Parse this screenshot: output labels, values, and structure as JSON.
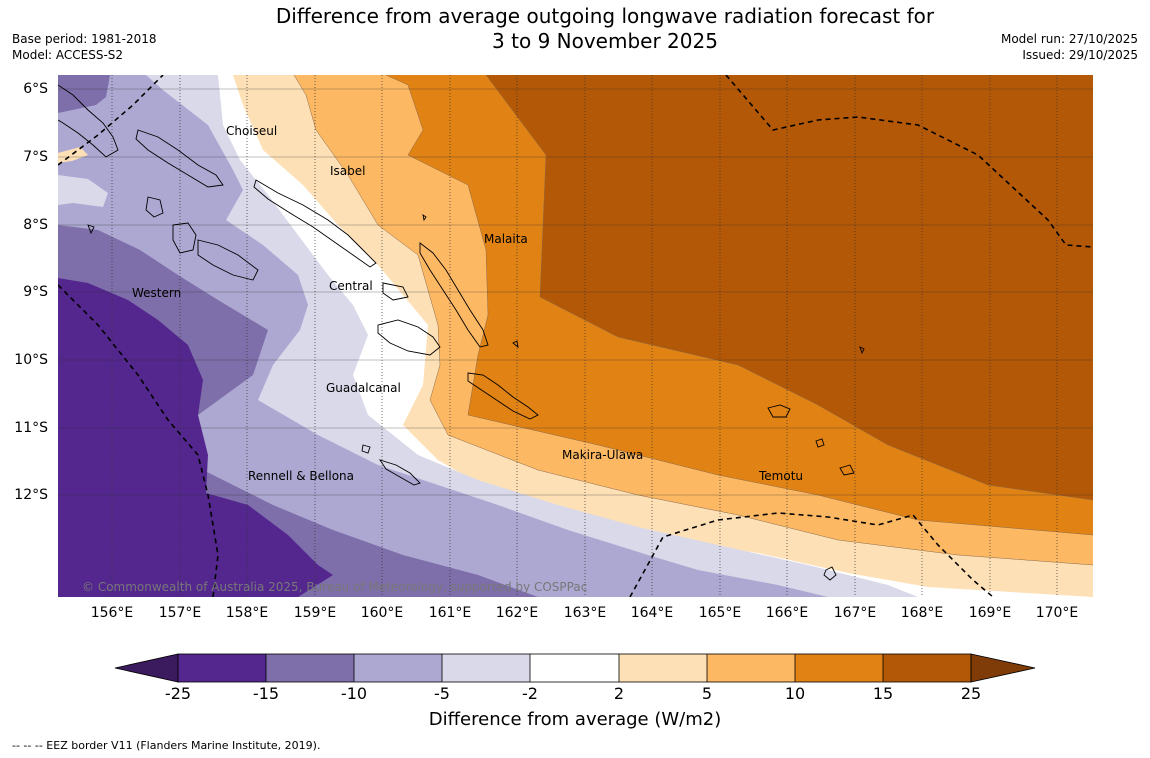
{
  "header": {
    "title_line1": "Difference from average outgoing longwave radiation forecast for",
    "title_line2": "3 to 9 November 2025",
    "base_period": "Base period: 1981-2018",
    "model": "Model: ACCESS-S2",
    "model_run": "Model run: 27/10/2025",
    "issued": "Issued: 29/10/2025"
  },
  "map": {
    "lat_ticks": [
      "6°S",
      "7°S",
      "8°S",
      "9°S",
      "10°S",
      "11°S",
      "12°S"
    ],
    "lon_ticks": [
      "156°E",
      "157°E",
      "158°E",
      "159°E",
      "160°E",
      "161°E",
      "162°E",
      "163°E",
      "164°E",
      "165°E",
      "166°E",
      "167°E",
      "168°E",
      "169°E",
      "170°E"
    ],
    "regions": [
      "Choiseul",
      "Isabel",
      "Malaita",
      "Western",
      "Central",
      "Guadalcanal",
      "Rennell & Bellona",
      "Makira-Ulawa",
      "Temotu"
    ],
    "copyright": "© Commonwealth of Australia 2025, Bureau of Meteorology, supported by COSPPac"
  },
  "colorbar": {
    "ticks": [
      "-25",
      "-15",
      "-10",
      "-5",
      "-2",
      "2",
      "5",
      "10",
      "15",
      "25"
    ],
    "colors": [
      "#3b1a5e",
      "#54278f",
      "#7e6faa",
      "#ada8d2",
      "#d9d9ea",
      "#ffffff",
      "#fee0b6",
      "#fdb863",
      "#e08214",
      "#b35806",
      "#7f3b08"
    ],
    "label": "Difference from average (W/m2)"
  },
  "footer": {
    "eez_note": "--  --  -- EEZ border V11 (Flanders Marine Institute, 2019)."
  }
}
